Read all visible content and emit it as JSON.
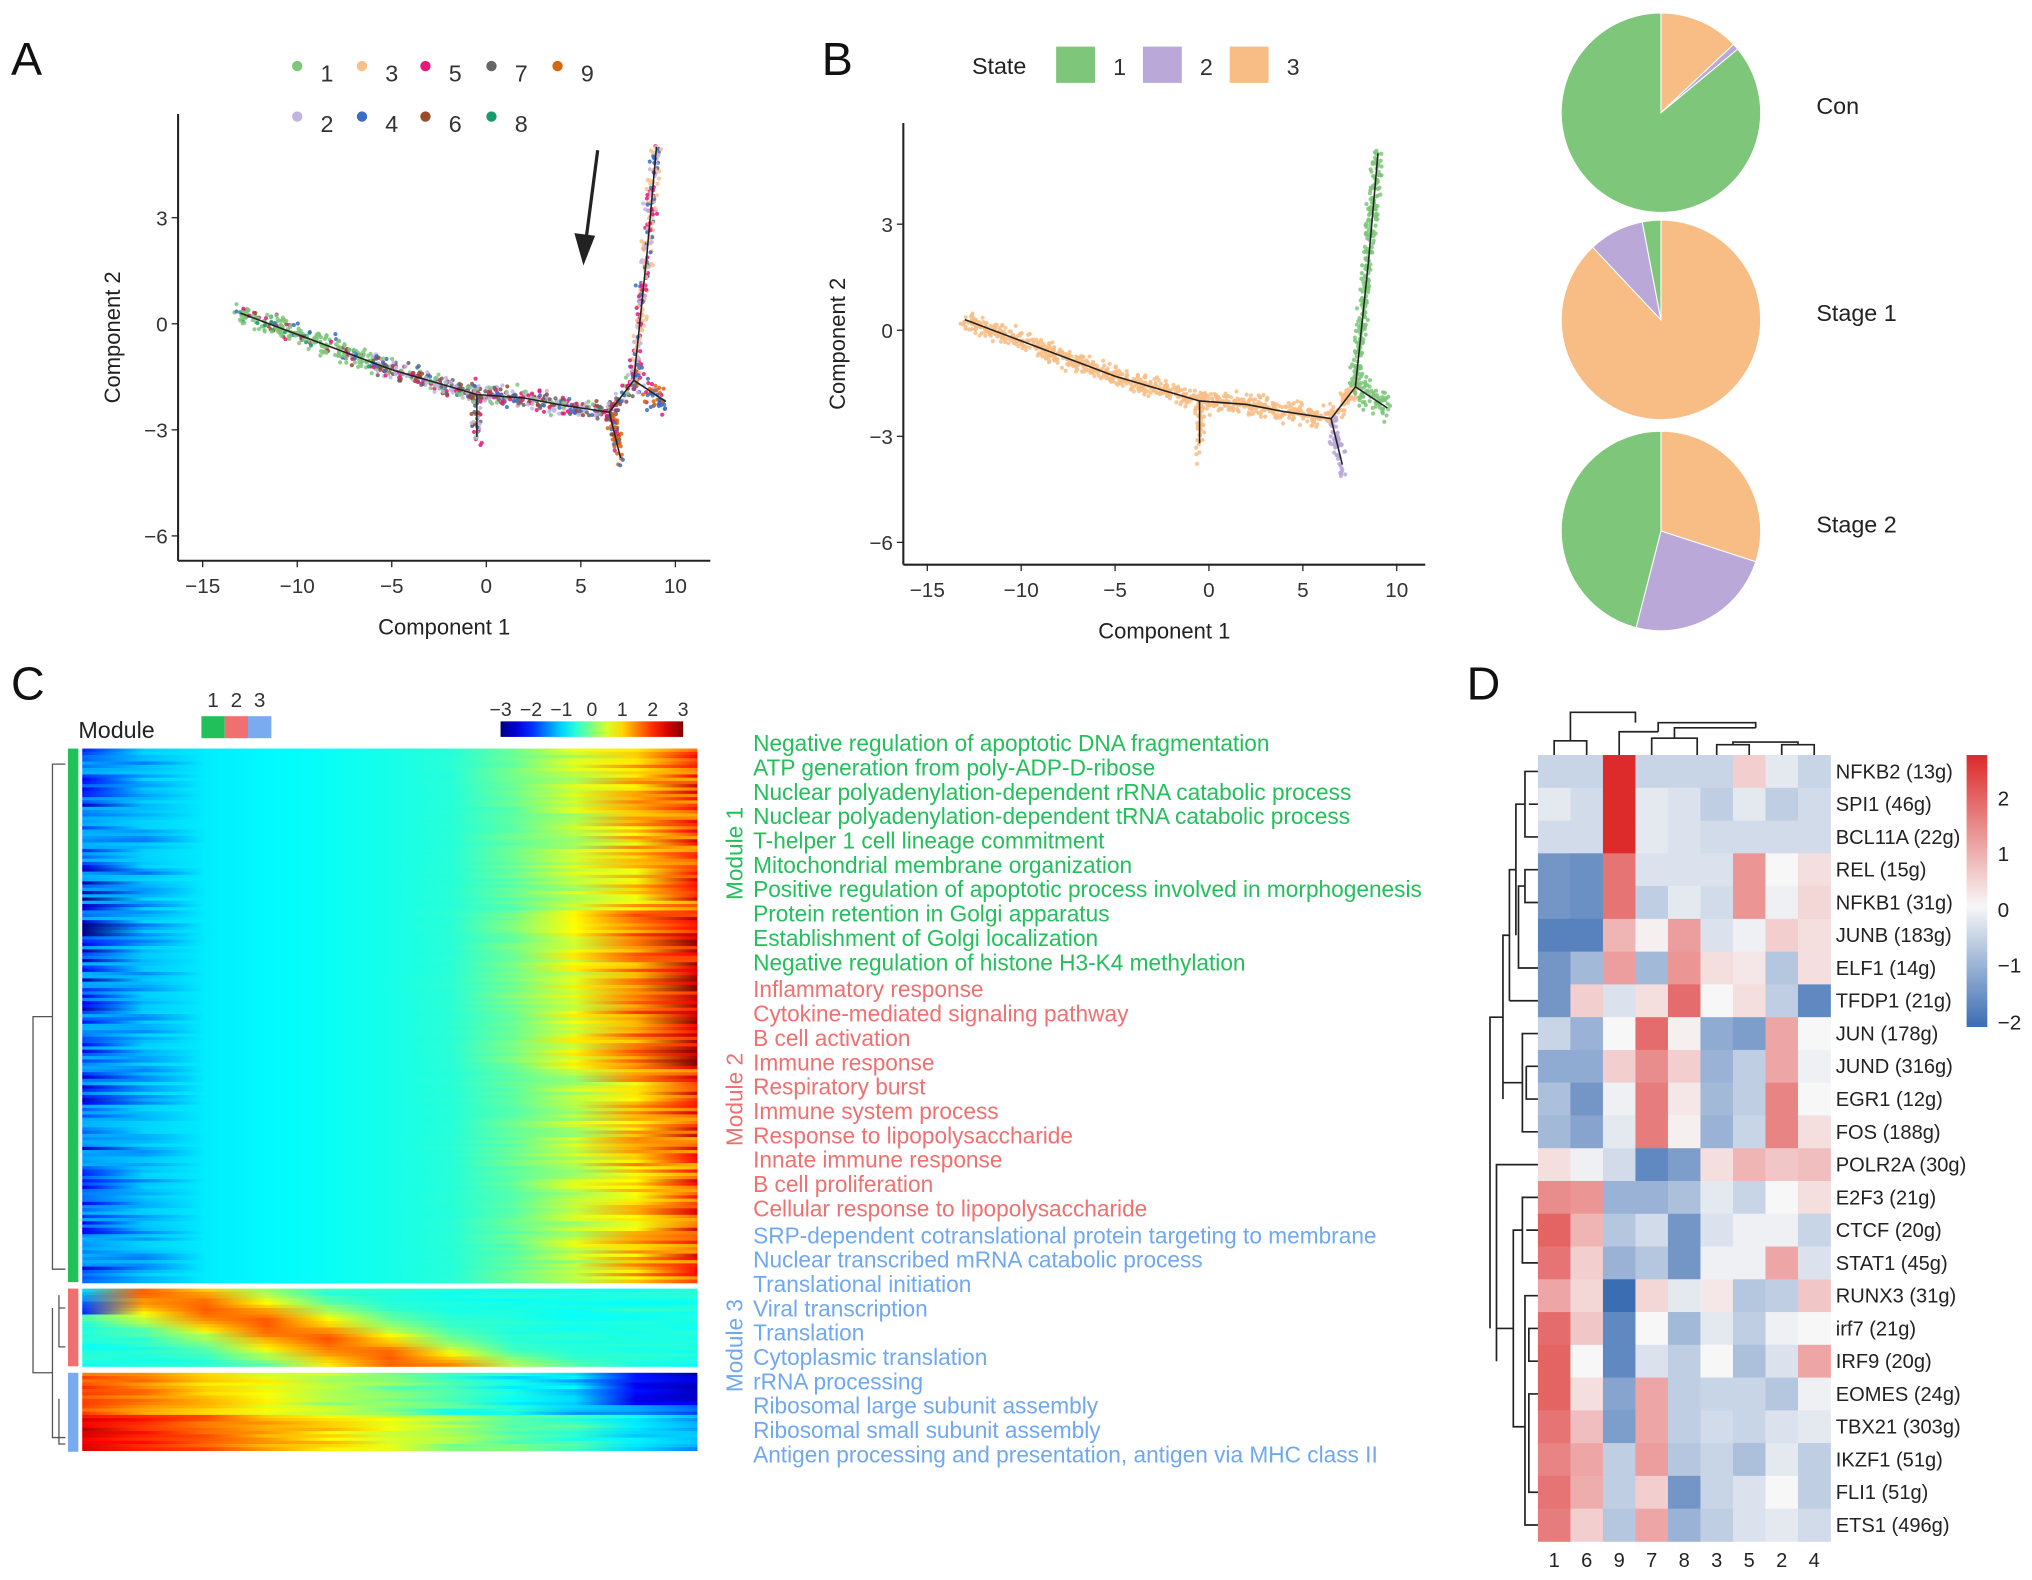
{
  "panels": {
    "a": "A",
    "b": "B",
    "c": "C",
    "d": "D"
  },
  "chart_data": [
    {
      "type": "scatter",
      "panel": "A",
      "xlabel": "Component 1",
      "ylabel": "Component 2",
      "xticks": [
        -15,
        -10,
        -5,
        0,
        5,
        10
      ],
      "yticks": [
        -6,
        -3,
        0,
        3
      ],
      "xlim": [
        -16,
        12
      ],
      "ylim": [
        -7,
        5.8
      ],
      "legend": {
        "position": "top",
        "entries": [
          {
            "label": "1",
            "color": "#7dc67a"
          },
          {
            "label": "3",
            "color": "#f8c08a"
          },
          {
            "label": "5",
            "color": "#e8197a"
          },
          {
            "label": "7",
            "color": "#666666"
          },
          {
            "label": "9",
            "color": "#d9650f"
          },
          {
            "label": "2",
            "color": "#c3b3e0"
          },
          {
            "label": "4",
            "color": "#3c6cc4"
          },
          {
            "label": "6",
            "color": "#9b4a2a"
          },
          {
            "label": "8",
            "color": "#1a9a6c"
          }
        ]
      },
      "trajectory": {
        "main": [
          [
            -13,
            0.3
          ],
          [
            -10,
            -0.3
          ],
          [
            -5,
            -1.3
          ],
          [
            -0.5,
            -2.0
          ],
          [
            2,
            -2.1
          ],
          [
            4,
            -2.3
          ],
          [
            6.5,
            -2.5
          ],
          [
            7.8,
            -1.6
          ],
          [
            8.5,
            2
          ],
          [
            9,
            5
          ]
        ],
        "branches": [
          [
            [
              -0.5,
              -2.0
            ],
            [
              -0.5,
              -3.2
            ]
          ],
          [
            [
              6.5,
              -2.5
            ],
            [
              7.1,
              -3.8
            ]
          ],
          [
            [
              7.8,
              -1.6
            ],
            [
              9.5,
              -2.2
            ]
          ]
        ]
      },
      "annotation": "arrow pointing down at Component 1 ≈ 5.5"
    },
    {
      "type": "scatter",
      "panel": "B",
      "xlabel": "Component 1",
      "ylabel": "Component 2",
      "xticks": [
        -15,
        -10,
        -5,
        0,
        5,
        10
      ],
      "yticks": [
        -6,
        -3,
        0,
        3
      ],
      "xlim": [
        -16,
        12
      ],
      "ylim": [
        -7,
        5.8
      ],
      "legend": {
        "title": "State",
        "position": "top",
        "entries": [
          {
            "label": "1",
            "color": "#7dc67a"
          },
          {
            "label": "2",
            "color": "#b9a8d8"
          },
          {
            "label": "3",
            "color": "#f8bd85"
          }
        ]
      }
    },
    {
      "type": "pie",
      "panel": "B",
      "pies": [
        {
          "label": "Con",
          "slices": [
            {
              "state": "3",
              "value": 0.13
            },
            {
              "state": "2",
              "value": 0.01
            },
            {
              "state": "1",
              "value": 0.86
            }
          ]
        },
        {
          "label": "Stage 1",
          "slices": [
            {
              "state": "3",
              "value": 0.88
            },
            {
              "state": "2",
              "value": 0.09
            },
            {
              "state": "1",
              "value": 0.03
            }
          ]
        },
        {
          "label": "Stage 2",
          "slices": [
            {
              "state": "3",
              "value": 0.3
            },
            {
              "state": "2",
              "value": 0.24
            },
            {
              "state": "1",
              "value": 0.46
            }
          ]
        }
      ]
    },
    {
      "type": "heatmap",
      "panel": "C",
      "module_legend": {
        "title": "Module",
        "labels": [
          "1",
          "2",
          "3"
        ],
        "colors": [
          "#22c05a",
          "#f07070",
          "#7aaaf0"
        ]
      },
      "color_scale": {
        "ticks": [
          "-3",
          "-2",
          "-1",
          "0",
          "1",
          "2",
          "3"
        ],
        "range": [
          -3,
          3
        ],
        "colormap": "jet"
      },
      "modules": [
        {
          "label": "Module 1",
          "color": "#22c05a",
          "terms": [
            "Negative regulation of apoptotic DNA fragmentation",
            "ATP generation from poly-ADP-D-ribose",
            "Nuclear polyadenylation-dependent rRNA catabolic process",
            "Nuclear polyadenylation-dependent tRNA catabolic process",
            "T-helper 1 cell lineage commitment",
            "Mitochondrial membrane organization",
            "Positive regulation of apoptotic process involved in morphogenesis",
            "Protein retention in Golgi apparatus",
            "Establishment of Golgi localization",
            "Negative regulation of histone H3-K4 methylation"
          ]
        },
        {
          "label": "Module 2",
          "color": "#f07070",
          "terms": [
            "Inflammatory response",
            "Cytokine-mediated signaling pathway",
            "B cell activation",
            "Immune response",
            "Respiratory burst",
            "Immune system process",
            "Response to lipopolysaccharide",
            "Innate immune response",
            "B cell proliferation",
            "Cellular response to lipopolysaccharide"
          ]
        },
        {
          "label": "Module 3",
          "color": "#6fa8f0",
          "terms": [
            "SRP-dependent cotranslational protein targeting to membrane",
            "Nuclear transcribed mRNA catabolic process",
            "Translational initiation",
            "Viral transcription",
            "Translation",
            "Cytoplasmic translation",
            "rRNA processing",
            "Ribosomal large subunit assembly",
            "Ribosomal small subunit assembly",
            "Antigen processing and presentation, antigen via MHC class II"
          ]
        }
      ]
    },
    {
      "type": "heatmap",
      "panel": "D",
      "columns": [
        "1",
        "6",
        "9",
        "7",
        "8",
        "3",
        "5",
        "2",
        "4"
      ],
      "rows": [
        "NFKB2 (13g)",
        "SPI1 (46g)",
        "BCL11A (22g)",
        "REL (15g)",
        "NFKB1 (31g)",
        "JUNB (183g)",
        "ELF1 (14g)",
        "TFDP1 (21g)",
        "JUN (178g)",
        "JUND (316g)",
        "EGR1 (12g)",
        "FOS (188g)",
        "POLR2A (30g)",
        "E2F3 (21g)",
        "CTCF (20g)",
        "STAT1 (45g)",
        "RUNX3 (31g)",
        "irf7 (21g)",
        "IRF9 (20g)",
        "EOMES (24g)",
        "TBX21 (303g)",
        "IKZF1 (51g)",
        "FLI1 (51g)",
        "ETS1 (496g)"
      ],
      "highlight_row": "STAT1 (45g)",
      "highlight_color": "#e0454a",
      "color_scale": {
        "ticks": [
          "2",
          "1",
          "0",
          "-1",
          "-2"
        ],
        "range": [
          -2,
          2.5
        ],
        "low": "#3b6db3",
        "mid": "#f7f7f7",
        "high": "#dd2a2a"
      },
      "values": [
        [
          -0.5,
          -0.5,
          2.5,
          -0.5,
          -0.5,
          -0.5,
          0.5,
          -0.2,
          -0.5
        ],
        [
          -0.2,
          -0.4,
          2.5,
          -0.2,
          -0.3,
          -0.6,
          -0.2,
          -0.6,
          -0.4
        ],
        [
          -0.4,
          -0.4,
          2.5,
          -0.2,
          -0.3,
          -0.4,
          -0.4,
          -0.4,
          -0.4
        ],
        [
          -1.4,
          -1.5,
          1.6,
          -0.3,
          -0.3,
          -0.3,
          1.2,
          0,
          0.3
        ],
        [
          -1.4,
          -1.5,
          1.6,
          -0.6,
          -0.2,
          -0.4,
          1.2,
          -0.1,
          0.4
        ],
        [
          -1.7,
          -1.7,
          0.8,
          0.1,
          1.1,
          -0.3,
          -0.1,
          0.5,
          0.3
        ],
        [
          -1.4,
          -0.9,
          1.1,
          -0.9,
          1.2,
          0.3,
          0.2,
          -0.7,
          0.3
        ],
        [
          -1.4,
          0.5,
          -0.3,
          0.3,
          1.7,
          0,
          0.3,
          -0.6,
          -1.6
        ],
        [
          -0.5,
          -1.0,
          0,
          1.7,
          0.1,
          -1.1,
          -1.3,
          1.0,
          0
        ],
        [
          -1.1,
          -1.1,
          0.5,
          1.3,
          0.5,
          -1.0,
          -0.6,
          1.0,
          -0.1
        ],
        [
          -0.8,
          -1.4,
          -0.1,
          1.5,
          0.2,
          -0.9,
          -0.6,
          1.4,
          0
        ],
        [
          -0.9,
          -1.2,
          -0.2,
          1.5,
          0.1,
          -1.0,
          -0.5,
          1.4,
          0.3
        ],
        [
          0.3,
          -0.1,
          -0.4,
          -1.6,
          -1.3,
          0.3,
          0.8,
          0.6,
          0.7
        ],
        [
          1.3,
          1.2,
          -1.0,
          -1.0,
          -0.8,
          -0.2,
          -0.5,
          0,
          0.3
        ],
        [
          1.8,
          0.8,
          -0.7,
          -0.4,
          -1.4,
          -0.3,
          -0.1,
          -0.1,
          -0.5
        ],
        [
          1.6,
          0.5,
          -1.0,
          -0.7,
          -1.4,
          -0.1,
          -0.1,
          1.0,
          -0.3
        ],
        [
          1.0,
          0.4,
          -2.0,
          0.4,
          -0.2,
          0.2,
          -0.7,
          -0.6,
          0.6
        ],
        [
          1.7,
          0.6,
          -1.6,
          0,
          -0.9,
          -0.2,
          -0.6,
          -0.1,
          0
        ],
        [
          1.8,
          0,
          -1.6,
          -0.3,
          -0.6,
          0,
          -0.8,
          -0.3,
          1.0
        ],
        [
          1.8,
          0.3,
          -1.2,
          1.0,
          -0.6,
          -0.5,
          -0.5,
          -0.7,
          -0.1
        ],
        [
          1.6,
          0.7,
          -1.3,
          1.0,
          -0.6,
          -0.4,
          -0.5,
          -0.3,
          -0.2
        ],
        [
          1.4,
          1.0,
          -0.6,
          1.1,
          -0.7,
          -0.5,
          -0.8,
          -0.2,
          -0.6
        ],
        [
          1.6,
          0.9,
          -0.6,
          0.5,
          -1.4,
          -0.5,
          -0.3,
          0,
          -0.6
        ],
        [
          1.5,
          0.5,
          -0.7,
          1.0,
          -1.0,
          -0.6,
          -0.3,
          -0.2,
          -0.4
        ]
      ]
    }
  ]
}
